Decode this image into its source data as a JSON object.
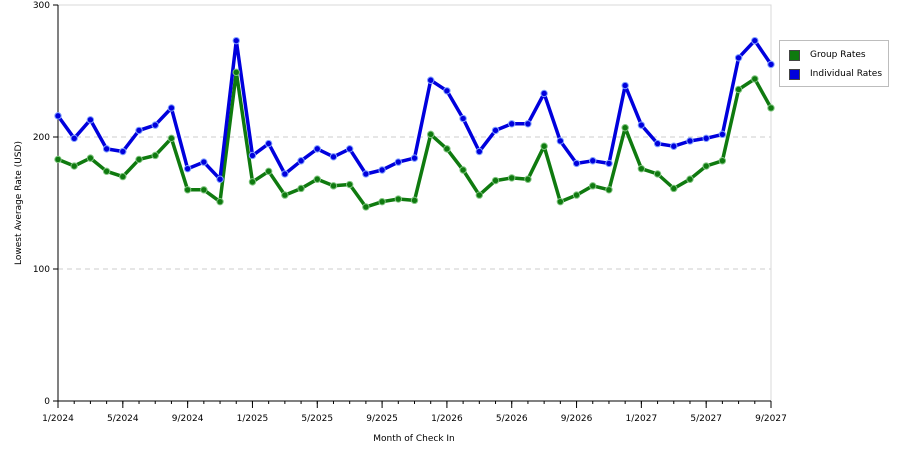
{
  "chart_data": {
    "type": "line",
    "xlabel": "Month of Check In",
    "ylabel": "Lowest Average Rate (USD)",
    "ylim": [
      0,
      300
    ],
    "yticks": [
      0,
      100,
      200,
      300
    ],
    "grid": "horizontal dashed at 100 and 200",
    "legend_position": "right",
    "x": [
      "1/2024",
      "2/2024",
      "3/2024",
      "4/2024",
      "5/2024",
      "6/2024",
      "7/2024",
      "8/2024",
      "9/2024",
      "10/2024",
      "11/2024",
      "12/2024",
      "1/2025",
      "2/2025",
      "3/2025",
      "4/2025",
      "5/2025",
      "6/2025",
      "7/2025",
      "8/2025",
      "9/2025",
      "10/2025",
      "11/2025",
      "12/2025",
      "1/2026",
      "2/2026",
      "3/2026",
      "4/2026",
      "5/2026",
      "6/2026",
      "7/2026",
      "8/2026",
      "9/2026",
      "10/2026",
      "11/2026",
      "12/2026",
      "1/2027",
      "2/2027",
      "3/2027",
      "4/2027",
      "5/2027",
      "6/2027",
      "7/2027",
      "8/2027",
      "9/2027"
    ],
    "xtick_labels": [
      "1/2024",
      "5/2024",
      "9/2024",
      "1/2025",
      "5/2025",
      "9/2025",
      "1/2026",
      "5/2026",
      "9/2026",
      "1/2027",
      "5/2027",
      "9/2027"
    ],
    "series": [
      {
        "name": "Group Rates",
        "color": "#0f7a0f",
        "values": [
          183,
          178,
          184,
          174,
          170,
          183,
          186,
          199,
          160,
          160,
          151,
          249,
          166,
          174,
          156,
          161,
          168,
          163,
          164,
          147,
          151,
          153,
          152,
          202,
          191,
          175,
          156,
          167,
          169,
          168,
          193,
          151,
          156,
          163,
          160,
          207,
          176,
          172,
          161,
          168,
          178,
          182,
          236,
          244,
          222
        ]
      },
      {
        "name": "Individual Rates",
        "color": "#0000dd",
        "values": [
          216,
          199,
          213,
          191,
          189,
          205,
          209,
          222,
          176,
          181,
          168,
          273,
          186,
          195,
          172,
          182,
          191,
          185,
          191,
          172,
          175,
          181,
          184,
          243,
          235,
          214,
          189,
          205,
          210,
          210,
          233,
          197,
          180,
          182,
          180,
          239,
          209,
          195,
          193,
          197,
          199,
          202,
          260,
          273,
          255
        ]
      }
    ]
  }
}
